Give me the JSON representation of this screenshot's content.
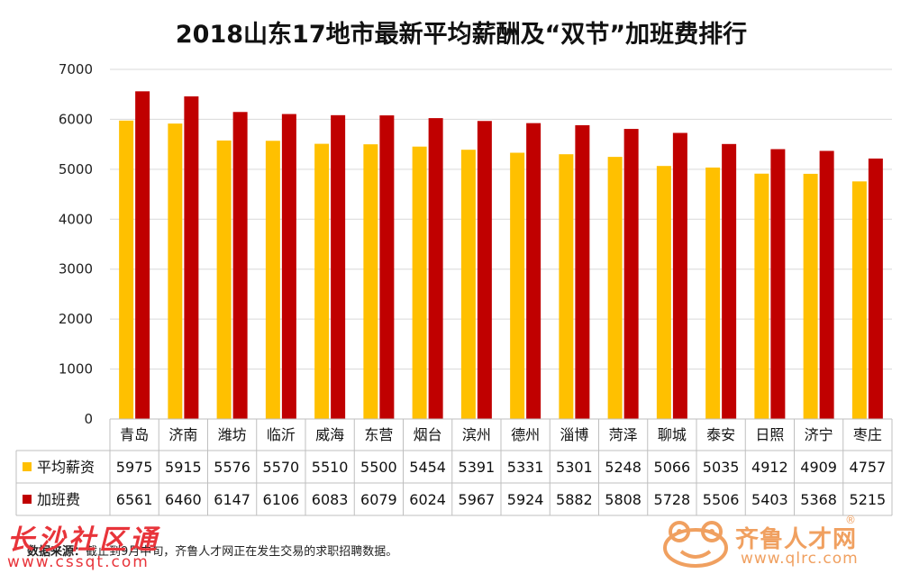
{
  "chart_data": {
    "type": "bar",
    "title": "2018山东17地市最新平均薪酬及“双节”加班费排行",
    "categories": [
      "青岛",
      "济南",
      "潍坊",
      "临沂",
      "威海",
      "东营",
      "烟台",
      "滨州",
      "德州",
      "淄博",
      "菏泽",
      "聊城",
      "泰安",
      "日照",
      "济宁",
      "枣庄"
    ],
    "series": [
      {
        "name": "平均薪资",
        "color": "#FFC000",
        "values": [
          5975,
          5915,
          5576,
          5570,
          5510,
          5500,
          5454,
          5391,
          5331,
          5301,
          5248,
          5066,
          5035,
          4912,
          4909,
          4757
        ]
      },
      {
        "name": "加班费",
        "color": "#C00000",
        "values": [
          6561,
          6460,
          6147,
          6106,
          6083,
          6079,
          6024,
          5967,
          5924,
          5882,
          5808,
          5728,
          5506,
          5403,
          5368,
          5215
        ]
      }
    ],
    "ylim": [
      0,
      7000
    ],
    "yticks": [
      0,
      1000,
      2000,
      3000,
      4000,
      5000,
      6000,
      7000
    ],
    "grid": true,
    "legend": "data-table"
  },
  "footer": {
    "source_label": "数据来源：",
    "source_note": "截止到9月中旬，齐鲁人才网正在发生交易的求职招聘数据。"
  },
  "watermarks": {
    "left_name": "长沙社区通",
    "left_url": "www.cssqt.com",
    "right_name": "齐鲁人才网",
    "right_url": "www.qlrc.com",
    "right_reg": "®"
  }
}
